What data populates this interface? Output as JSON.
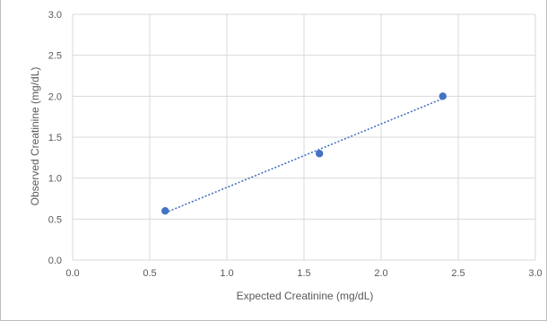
{
  "chart_data": {
    "type": "scatter",
    "title": "",
    "xlabel": "Expected Creatinine (mg/dL)",
    "ylabel": "Observed Creatinine (mg/dL)",
    "xlim": [
      0.0,
      3.0
    ],
    "ylim": [
      0.0,
      3.0
    ],
    "x_ticks": [
      "0.0",
      "0.5",
      "1.0",
      "1.5",
      "2.0",
      "2.5",
      "3.0"
    ],
    "y_ticks": [
      "0.0",
      "0.5",
      "1.0",
      "1.5",
      "2.0",
      "2.5",
      "3.0"
    ],
    "grid": true,
    "legend": "none",
    "series": [
      {
        "points": [
          {
            "x": 0.6,
            "y": 0.6
          },
          {
            "x": 1.6,
            "y": 1.3
          },
          {
            "x": 2.4,
            "y": 2.0
          }
        ],
        "trendline": "linear-dotted",
        "color": "#4472C4"
      }
    ]
  }
}
